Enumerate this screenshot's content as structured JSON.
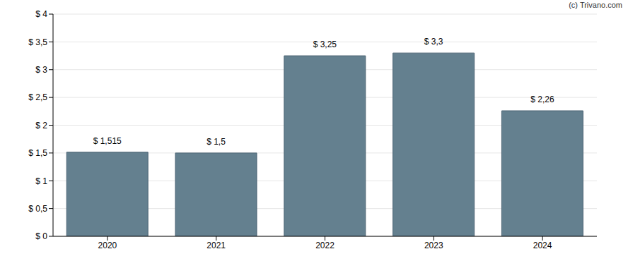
{
  "chart_data": {
    "type": "bar",
    "annotation": "(c) Trivano.com",
    "categories": [
      "2020",
      "2021",
      "2022",
      "2023",
      "2024"
    ],
    "values": [
      1.515,
      1.5,
      3.25,
      3.3,
      2.26
    ],
    "value_labels": [
      "$ 1,515",
      "$ 1,5",
      "$ 3,25",
      "$ 3,3",
      "$ 2,26"
    ],
    "data_labels": true,
    "color": "#64808f",
    "ylim": [
      0,
      4
    ],
    "yticks": [
      {
        "value": 0,
        "label": "$ 0"
      },
      {
        "value": 0.5,
        "label": "$ 0,5"
      },
      {
        "value": 1,
        "label": "$ 1"
      },
      {
        "value": 1.5,
        "label": "$ 1,5"
      },
      {
        "value": 2,
        "label": "$ 2"
      },
      {
        "value": 2.5,
        "label": "$ 2,5"
      },
      {
        "value": 3,
        "label": "$ 3"
      },
      {
        "value": 3.5,
        "label": "$ 3,5"
      },
      {
        "value": 4,
        "label": "$ 4"
      }
    ],
    "grid": true
  }
}
